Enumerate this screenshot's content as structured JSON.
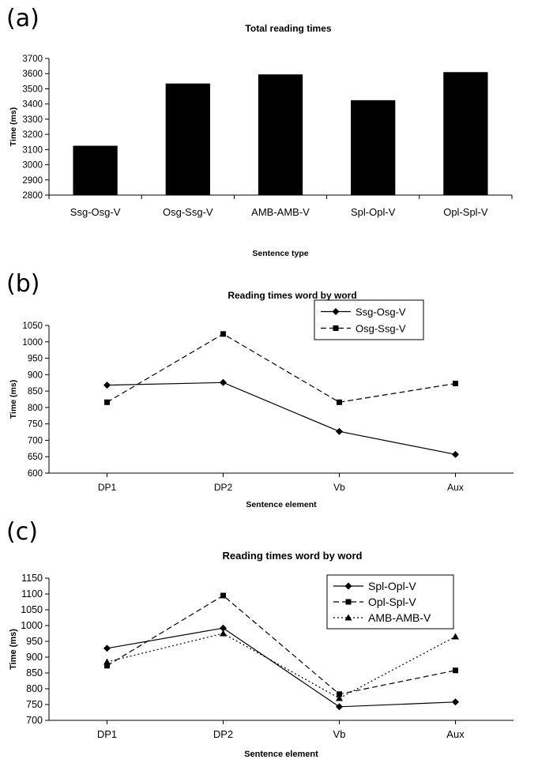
{
  "chart_data": [
    {
      "panel_label": "(a)",
      "type": "bar",
      "title": "Total reading times",
      "xlabel": "Sentence type",
      "ylabel": "Time (ms)",
      "ylim": [
        2800,
        3700
      ],
      "ytick_step": 100,
      "categories": [
        "Ssg-Osg-V",
        "Osg-Ssg-V",
        "AMB-AMB-V",
        "Spl-Opl-V",
        "Opl-Spl-V"
      ],
      "values": [
        3125,
        3535,
        3595,
        3425,
        3610
      ],
      "bar_color": "#000000",
      "grid": false
    },
    {
      "panel_label": "(b)",
      "type": "line",
      "title": "Reading times word by word",
      "xlabel": "Sentence element",
      "ylabel": "Time (ms)",
      "ylim": [
        600,
        1050
      ],
      "ytick_step": 50,
      "categories": [
        "DP1",
        "DP2",
        "Vb",
        "Aux"
      ],
      "legend_position": "top-right",
      "series": [
        {
          "name": "Ssg-Osg-V",
          "marker": "diamond",
          "line": "solid",
          "values": [
            868,
            876,
            727,
            657
          ]
        },
        {
          "name": "Osg-Ssg-V",
          "marker": "square",
          "line": "dashed",
          "values": [
            816,
            1024,
            816,
            873
          ]
        }
      ],
      "grid": false
    },
    {
      "panel_label": "(c)",
      "type": "line",
      "title": "Reading times word by word",
      "xlabel": "Sentence element",
      "ylabel": "Time (ms)",
      "ylim": [
        700,
        1150
      ],
      "ytick_step": 50,
      "categories": [
        "DP1",
        "DP2",
        "Vb",
        "Aux"
      ],
      "legend_position": "top-right",
      "series": [
        {
          "name": "Spl-Opl-V",
          "marker": "diamond",
          "line": "solid",
          "values": [
            928,
            992,
            743,
            758
          ]
        },
        {
          "name": "Opl-Spl-V",
          "marker": "square",
          "line": "dashed",
          "values": [
            873,
            1095,
            783,
            858
          ]
        },
        {
          "name": "AMB-AMB-V",
          "marker": "triangle",
          "line": "dotted",
          "values": [
            885,
            975,
            770,
            965
          ]
        }
      ],
      "grid": false
    }
  ]
}
